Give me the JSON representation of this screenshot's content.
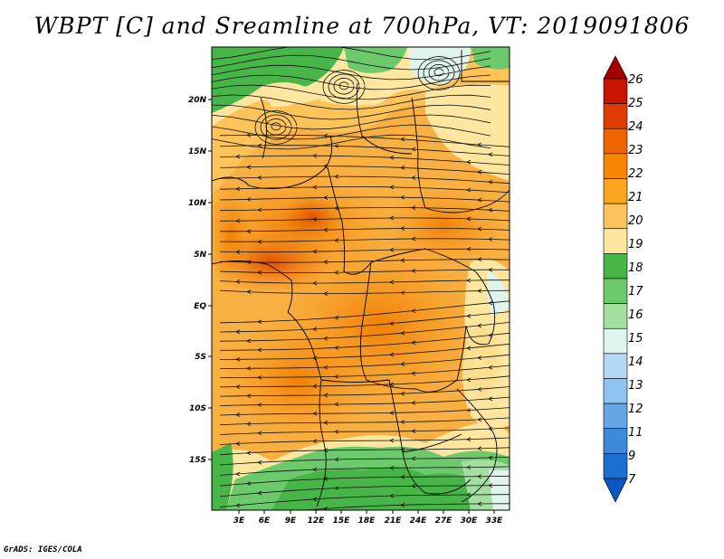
{
  "title": "WBPT [C] and Sreamline at 700hPa, VT: 2019091806",
  "footer": "GrADS: IGES/COLA",
  "map": {
    "lat_labels": [
      "20N",
      "15N",
      "10N",
      "5N",
      "EQ",
      "5S",
      "10S",
      "15S"
    ],
    "lon_labels": [
      "3E",
      "6E",
      "9E",
      "12E",
      "15E",
      "18E",
      "21E",
      "24E",
      "27E",
      "30E",
      "33E"
    ],
    "lon_range": [
      0,
      35
    ],
    "lat_range": [
      -20,
      24
    ],
    "grid": "off",
    "dominant_flow": "easterly"
  },
  "colorbar": {
    "labels": [
      "26",
      "25",
      "24",
      "23",
      "22",
      "21",
      "20",
      "19",
      "18",
      "17",
      "16",
      "15",
      "14",
      "13",
      "12",
      "11",
      "9",
      "7"
    ],
    "colors": [
      "#a50000",
      "#c81400",
      "#e03c00",
      "#f06400",
      "#f78700",
      "#faa41f",
      "#fbc35a",
      "#fde6a0",
      "#47b547",
      "#6cc96c",
      "#a3e0a0",
      "#e0f4ee",
      "#b3d9f7",
      "#8fc3f0",
      "#64a6e6",
      "#3c8ad9",
      "#1a6fd0",
      "#0a56c0"
    ],
    "extends": "both"
  }
}
